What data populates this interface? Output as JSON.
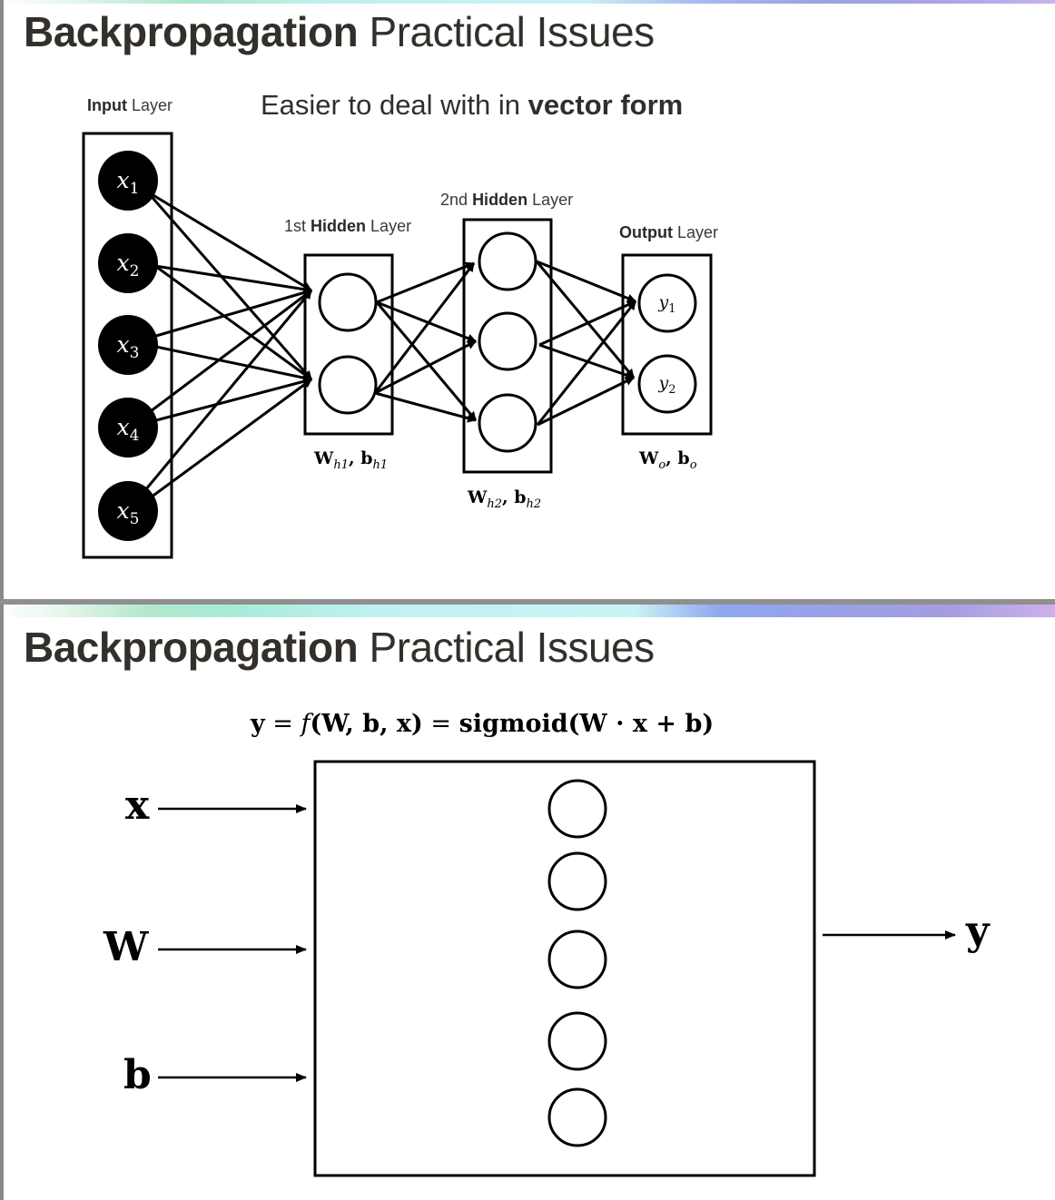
{
  "slide1": {
    "title_bold": "Backpropagation",
    "title_rest": "Practical Issues",
    "note_prefix": "Easier to deal with in",
    "note_bold": "vector form",
    "layers": {
      "input": {
        "bold": "Input",
        "rest": "Layer"
      },
      "hidden1": {
        "prefix": "1st",
        "bold": "Hidden",
        "rest": "Layer"
      },
      "hidden2": {
        "prefix": "2nd",
        "bold": "Hidden",
        "rest": "Layer"
      },
      "output": {
        "bold": "Output",
        "rest": "Layer"
      }
    },
    "inputs": [
      {
        "var": "x",
        "sub": "1"
      },
      {
        "var": "x",
        "sub": "2"
      },
      {
        "var": "x",
        "sub": "3"
      },
      {
        "var": "x",
        "sub": "4"
      },
      {
        "var": "x",
        "sub": "5"
      }
    ],
    "outputs": [
      {
        "var": "y",
        "sub": "1"
      },
      {
        "var": "y",
        "sub": "2"
      }
    ],
    "weight_labels": {
      "h1": {
        "w": "W",
        "wsub": "h1",
        "b": "b",
        "bsub": "h1"
      },
      "h2": {
        "w": "W",
        "wsub": "h2",
        "b": "b",
        "bsub": "h2"
      },
      "o": {
        "w": "W",
        "wsub": "o",
        "b": "b",
        "bsub": "o"
      }
    }
  },
  "slide2": {
    "title_bold": "Backpropagation",
    "title_rest": "Practical Issues",
    "equation": {
      "lhs": "y",
      "eq1": "=",
      "fn": "f",
      "args": "(W, b, x)",
      "eq2": "=",
      "rhs": "sigmoid(W · x + b)"
    },
    "inputs": [
      "x",
      "W",
      "b"
    ],
    "output": "y"
  },
  "colors": {
    "ink": "#000000",
    "title": "#33302c",
    "divider": "#8f8f8f"
  }
}
